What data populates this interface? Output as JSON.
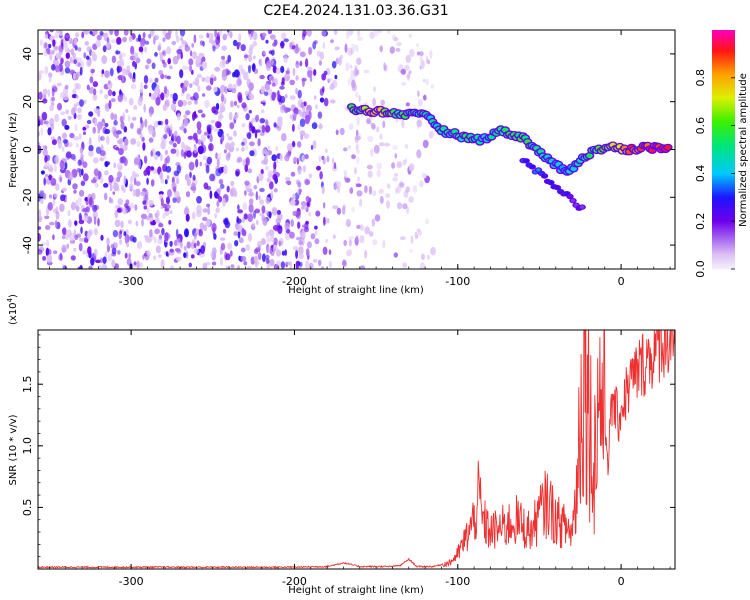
{
  "title": "C2E4.2024.131.03.36.G31",
  "chart_data": [
    {
      "type": "heatmap",
      "xlabel": "Height of straight line (km)",
      "ylabel": "Frequency (Hz)",
      "xlim": [
        -357,
        33
      ],
      "ylim": [
        -50,
        50
      ],
      "xticks": [
        -300,
        -200,
        -100,
        0
      ],
      "yticks": [
        -40,
        -20,
        0,
        20,
        40
      ],
      "colorbar": {
        "label": "Normalized spectral amplitude",
        "range": [
          0.0,
          1.0
        ],
        "ticks": [
          "0.0",
          "0.2",
          "0.4",
          "0.6",
          "0.8"
        ],
        "colormap": "rainbow (lavender-violet-blue-cyan-green-yellow-orange-red-magenta)"
      },
      "noise_region": {
        "x_range": [
          -357,
          -115
        ],
        "freq_range": [
          -50,
          50
        ],
        "amplitude_range": [
          0.05,
          0.3
        ]
      },
      "signal_ridge": [
        {
          "x": -165,
          "freq": 17,
          "amp": 0.55
        },
        {
          "x": -150,
          "freq": 16,
          "amp": 0.75
        },
        {
          "x": -135,
          "freq": 15,
          "amp": 0.55
        },
        {
          "x": -118,
          "freq": 14,
          "amp": 0.45
        },
        {
          "x": -110,
          "freq": 8,
          "amp": 0.45
        },
        {
          "x": -95,
          "freq": 5,
          "amp": 0.5
        },
        {
          "x": -85,
          "freq": 4,
          "amp": 0.45
        },
        {
          "x": -75,
          "freq": 8,
          "amp": 0.5
        },
        {
          "x": -60,
          "freq": 5,
          "amp": 0.55
        },
        {
          "x": -45,
          "freq": -4,
          "amp": 0.45
        },
        {
          "x": -33,
          "freq": -10,
          "amp": 0.4
        },
        {
          "x": -25,
          "freq": -4,
          "amp": 0.45
        },
        {
          "x": -15,
          "freq": 0,
          "amp": 0.6
        },
        {
          "x": -5,
          "freq": 1,
          "amp": 0.7
        },
        {
          "x": 5,
          "freq": 0,
          "amp": 0.85
        },
        {
          "x": 15,
          "freq": 1,
          "amp": 0.9
        },
        {
          "x": 30,
          "freq": 0,
          "amp": 0.95
        }
      ],
      "secondary_branch": [
        {
          "x": -60,
          "freq": -4,
          "amp": 0.35
        },
        {
          "x": -45,
          "freq": -13,
          "amp": 0.3
        },
        {
          "x": -35,
          "freq": -18,
          "amp": 0.25
        },
        {
          "x": -22,
          "freq": -26,
          "amp": 0.15
        }
      ]
    },
    {
      "type": "line",
      "xlabel": "Height of straight line (km)",
      "ylabel": "SNR (10 * v/v)",
      "y_multiplier": "(x10",
      "y_multiplier_exp": "4",
      "y_multiplier_close": ")",
      "xlim": [
        -357,
        33
      ],
      "ylim": [
        0,
        19400
      ],
      "xticks": [
        -300,
        -200,
        -100,
        0
      ],
      "yticks": [
        0.5,
        1.0,
        1.5
      ],
      "ytick_labels": [
        "0.5",
        "1.0",
        "1.5"
      ],
      "series": [
        {
          "color": "#ee3030",
          "points": [
            [
              -357,
              150
            ],
            [
              -300,
              150
            ],
            [
              -200,
              150
            ],
            [
              -180,
              200
            ],
            [
              -170,
              500
            ],
            [
              -160,
              200
            ],
            [
              -150,
              200
            ],
            [
              -140,
              200
            ],
            [
              -135,
              300
            ],
            [
              -130,
              800
            ],
            [
              -125,
              200
            ],
            [
              -115,
              200
            ],
            [
              -105,
              500
            ],
            [
              -100,
              1200
            ],
            [
              -95,
              2500
            ],
            [
              -90,
              4000
            ],
            [
              -87,
              6000
            ],
            [
              -85,
              4000
            ],
            [
              -80,
              3000
            ],
            [
              -70,
              3500
            ],
            [
              -65,
              4000
            ],
            [
              -60,
              3500
            ],
            [
              -55,
              3000
            ],
            [
              -50,
              4500
            ],
            [
              -45,
              5500
            ],
            [
              -40,
              4000
            ],
            [
              -35,
              3500
            ],
            [
              -30,
              3000
            ],
            [
              -27,
              7000
            ],
            [
              -25,
              13000
            ],
            [
              -22,
              18000
            ],
            [
              -20,
              14000
            ],
            [
              -17,
              8000
            ],
            [
              -13,
              15000
            ],
            [
              -10,
              12000
            ],
            [
              -8,
              9000
            ],
            [
              -5,
              14000
            ],
            [
              -2,
              12000
            ],
            [
              0,
              13000
            ],
            [
              5,
              15000
            ],
            [
              10,
              16000
            ],
            [
              15,
              17000
            ],
            [
              20,
              17500
            ],
            [
              25,
              18500
            ],
            [
              30,
              19000
            ],
            [
              33,
              19200
            ]
          ]
        }
      ]
    }
  ]
}
